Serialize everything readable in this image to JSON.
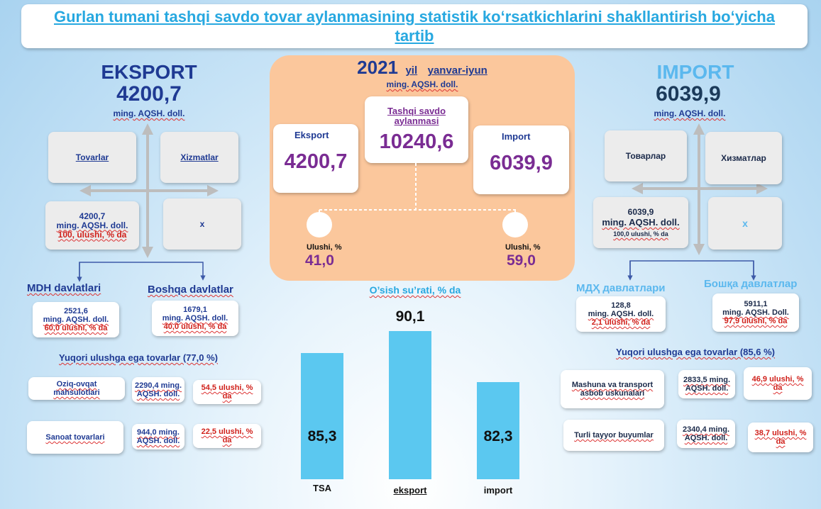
{
  "title": "Gurlan tumani tashqi savdo tovar aylanmasining statistik ko‘rsatkichlarini shakllantirish bo‘yicha tartib",
  "center": {
    "year": "2021",
    "year_suffix": "yil",
    "period": "yanvar-iyun",
    "unit": "ming. AQSH. doll.",
    "turnover_label": "Tashqi savdo aylanmasi",
    "turnover_value": "10240,6",
    "export_label": "Eksport",
    "export_value": "4200,7",
    "import_label": "Import",
    "import_value": "6039,9",
    "share_label_left": "Ulushi, %",
    "share_value_left": "41,0",
    "share_label_right": "Ulushi, %",
    "share_value_right": "59,0"
  },
  "export": {
    "heading": "EKSPORT",
    "value": "4200,7",
    "unit": "ming. AQSH. doll.",
    "goods_label": "Tovarlar",
    "services_label": "Xizmatlar",
    "goods_value": "4200,7",
    "goods_unit": "ming. AQSH. doll.",
    "goods_share": "100, ulushi, % da",
    "services_value": "x",
    "cis_label": "MDH davlatlari",
    "cis_value": "2521,6",
    "cis_unit": "ming. AQSH. doll.",
    "cis_share": "60,0 ulushi, % da",
    "other_label": "Boshqa davlatlar",
    "other_value": "1679,1",
    "other_unit": "ming. AQSH. doll.",
    "other_share": "40,0 ulushi, % da",
    "top_goods_heading": "Yuqori ulushga ega tovarlar (77,0  %)",
    "items": [
      {
        "name": "Oziq-ovqat mahsulotlari",
        "value": "2290,4 ming. AQSH. doll.",
        "share": "54,5 ulushi, % da"
      },
      {
        "name": "Sanoat tovarlari",
        "value": "944,0 ming. AQSH. doll.",
        "share": "22,5 ulushi, % da"
      }
    ]
  },
  "import": {
    "heading": "IMPORT",
    "value": "6039,9",
    "unit": "ming. AQSH. doll.",
    "goods_label": "Товарлар",
    "services_label": "Хизматлар",
    "goods_value": "6039,9",
    "goods_unit": "ming. AQSH. doll.",
    "goods_share": "100,0 ulushi, % da",
    "services_value": "x",
    "cis_label": "МДҲ давлатлари",
    "cis_value": "128,8",
    "cis_unit": "ming. AQSH. doll.",
    "cis_share": "2,1 ulushi, % da",
    "other_label": "Бошқа давлатлар",
    "other_value": "5911,1",
    "other_unit": "ming. AQSH. Doll.",
    "other_share": "97,9 ulushi, % da",
    "top_goods_heading": "Yuqori ulushga ega tovarlar (85,6  %)",
    "items": [
      {
        "name": "Mashuna va transport asbob uskunalari",
        "value": "2833,5 ming. AQSH. doll.",
        "share": "46,9   ulushi, % da"
      },
      {
        "name": "Turli  tayyor buyumlar",
        "value": "2340,4 ming. AQSH. doll.",
        "share": "38,7 ulushi, % da"
      }
    ]
  },
  "chart_data": {
    "type": "bar",
    "title": "O’sish su’rati, %  da",
    "categories": [
      "TSA",
      "eksport",
      "import"
    ],
    "values": [
      85.3,
      90.1,
      82.3
    ],
    "value_labels": [
      "85,3",
      "90,1",
      "82,3"
    ],
    "color": "#5bc8f0"
  }
}
